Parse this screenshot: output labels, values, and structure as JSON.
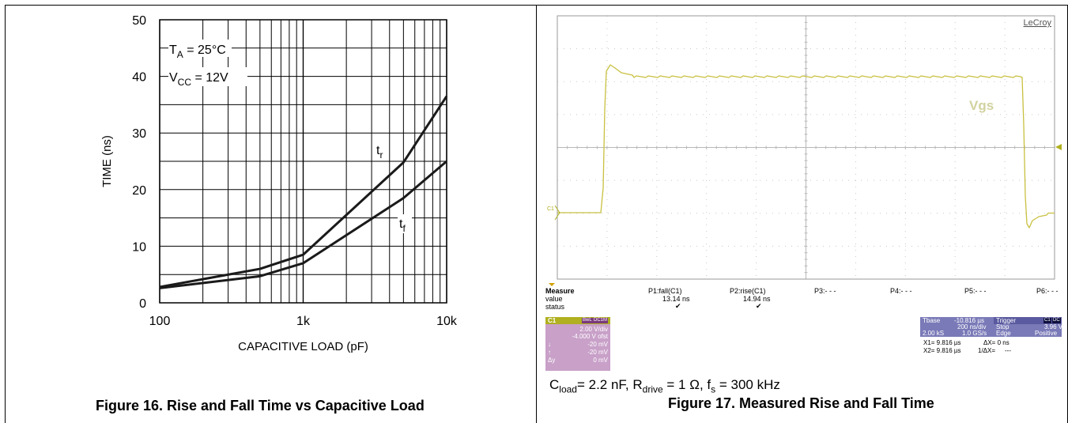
{
  "left_figure": {
    "caption": "Figure 16. Rise and Fall Time vs Capacitive Load",
    "conditions": [
      {
        "symbol": "T",
        "sub": "A",
        "rest": " = 25°C"
      },
      {
        "symbol": "V",
        "sub": "CC",
        "rest": " = 12V"
      }
    ],
    "curve_labels": [
      {
        "symbol": "t",
        "sub": "r"
      },
      {
        "symbol": "t",
        "sub": "f"
      }
    ]
  },
  "chart_data": {
    "type": "line",
    "title": "",
    "xlabel": "CAPACITIVE LOAD (pF)",
    "ylabel": "TIME (ns)",
    "x_scale": "log",
    "xlim": [
      100,
      10000
    ],
    "ylim": [
      0,
      50
    ],
    "x_ticks": [
      100,
      1000,
      10000
    ],
    "x_tick_labels": [
      "100",
      "1k",
      "10k"
    ],
    "y_ticks": [
      0,
      10,
      20,
      30,
      40,
      50
    ],
    "y_tick_labels": [
      "0",
      "10",
      "20",
      "30",
      "40",
      "50"
    ],
    "grid": true,
    "series": [
      {
        "name": "tr",
        "x": [
          100,
          500,
          1000,
          5000,
          10000
        ],
        "y": [
          2.8,
          6.0,
          8.5,
          24.8,
          36.5
        ]
      },
      {
        "name": "tf",
        "x": [
          100,
          500,
          1000,
          5000,
          10000
        ],
        "y": [
          2.6,
          4.7,
          7.0,
          18.5,
          25.0
        ]
      }
    ]
  },
  "right_figure": {
    "caption": "Figure 17. Measured Rise and Fall Time",
    "conditions": {
      "c_sym": "C",
      "c_sub": "load",
      "c_rest": "= 2.2 nF, ",
      "r_sym": "R",
      "r_sub": "drive",
      "r_rest": " = 1 Ω, ",
      "f_sym": "f",
      "f_sub": "s",
      "f_rest": " = 300 kHz"
    },
    "scope": {
      "brand": "LeCroy",
      "trace_label": "Vgs",
      "channel_marker": "C1",
      "measure": {
        "header": "Measure",
        "row_labels": [
          "value",
          "status"
        ],
        "params": [
          "P1:fall(C1)",
          "P2:rise(C1)",
          "P3:- - -",
          "P4:- - -",
          "P5:- - -",
          "P6:- - -"
        ],
        "values": [
          "13.14 ns",
          "14.94 ns"
        ],
        "status": [
          "✔",
          "✔"
        ]
      },
      "channel_box": {
        "name": "C1",
        "badges": [
          "BwL",
          "DC1M"
        ],
        "volts_div": "2.00 V/div",
        "offset": "-4.000 V ofst",
        "down_val": "-20 mV",
        "up_val": "-20 mV",
        "delta_val": "0 mV",
        "down_sym": "↓",
        "up_sym": "↑",
        "delta_sym": "Δy"
      },
      "timebase": {
        "label": "Tbase",
        "delay": "-10.816 µs",
        "time_div": "200 ns/div",
        "samples": "2.00 kS",
        "rate": "1.0 GS/s"
      },
      "trigger": {
        "label": "Trigger",
        "badges": [
          "C1",
          "DC"
        ],
        "mode": "Stop",
        "level": "3.96 V",
        "type": "Edge",
        "slope": "Positive"
      },
      "cursors": {
        "x1": "X1=  9.816 µs",
        "dx": "ΔX=  0 ns",
        "x2": "X2=  9.816 µs",
        "inv_dx": "1/ΔX=",
        "inv_dx_val": "---"
      },
      "colors": {
        "trace": "#c8c040",
        "grid": "#c8c8c8",
        "channel": "#c8a0c8",
        "timebase": "#7a7ab8"
      }
    }
  }
}
